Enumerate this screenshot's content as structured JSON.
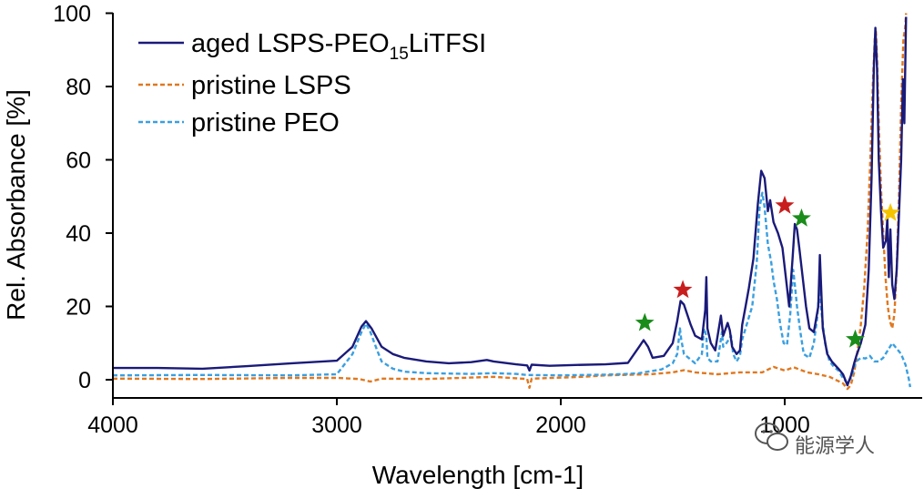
{
  "chart_data": {
    "type": "line",
    "xlabel": "Wavelength [cm-1]",
    "ylabel": "Rel. Absorbance [%]",
    "xlim": [
      4000,
      400
    ],
    "ylim": [
      -5,
      100
    ],
    "x_reversed": true,
    "x_ticks": [
      4000,
      3000,
      2000,
      1000
    ],
    "y_ticks": [
      0,
      20,
      40,
      60,
      80,
      100
    ],
    "grid": false,
    "legend_position": "top-left",
    "series": [
      {
        "name": "aged LSPS-PEO15LiTFSI",
        "legend_main": "aged LSPS-PEO",
        "legend_sub": "15",
        "legend_tail": "LiTFSI",
        "color": "#1a1a7a",
        "style": "solid",
        "points": [
          [
            4000,
            3.2
          ],
          [
            3800,
            3.2
          ],
          [
            3600,
            3.0
          ],
          [
            3400,
            3.7
          ],
          [
            3200,
            4.5
          ],
          [
            3000,
            5.2
          ],
          [
            2930,
            9.0
          ],
          [
            2890,
            14.5
          ],
          [
            2870,
            16.0
          ],
          [
            2845,
            14.0
          ],
          [
            2800,
            9.0
          ],
          [
            2750,
            7.0
          ],
          [
            2700,
            6.0
          ],
          [
            2600,
            5.0
          ],
          [
            2500,
            4.5
          ],
          [
            2400,
            4.8
          ],
          [
            2330,
            5.4
          ],
          [
            2300,
            5.0
          ],
          [
            2200,
            4.2
          ],
          [
            2150,
            3.9
          ],
          [
            2140,
            2.5
          ],
          [
            2130,
            4.1
          ],
          [
            2050,
            3.8
          ],
          [
            2000,
            3.9
          ],
          [
            1950,
            4.0
          ],
          [
            1800,
            4.2
          ],
          [
            1700,
            4.6
          ],
          [
            1650,
            9.0
          ],
          [
            1630,
            10.8
          ],
          [
            1610,
            9.0
          ],
          [
            1590,
            6.0
          ],
          [
            1540,
            6.5
          ],
          [
            1500,
            10.0
          ],
          [
            1480,
            16.0
          ],
          [
            1465,
            21.5
          ],
          [
            1450,
            20.5
          ],
          [
            1420,
            15.0
          ],
          [
            1400,
            12.0
          ],
          [
            1370,
            11.0
          ],
          [
            1355,
            19.0
          ],
          [
            1350,
            28.0
          ],
          [
            1345,
            14.0
          ],
          [
            1330,
            10.0
          ],
          [
            1310,
            8.0
          ],
          [
            1285,
            17.5
          ],
          [
            1275,
            12.0
          ],
          [
            1255,
            15.5
          ],
          [
            1245,
            13.5
          ],
          [
            1235,
            9.0
          ],
          [
            1215,
            7.0
          ],
          [
            1200,
            8.0
          ],
          [
            1190,
            15.0
          ],
          [
            1175,
            20.0
          ],
          [
            1160,
            25.0
          ],
          [
            1140,
            33.0
          ],
          [
            1120,
            48.0
          ],
          [
            1105,
            57.0
          ],
          [
            1090,
            55.0
          ],
          [
            1075,
            46.0
          ],
          [
            1065,
            49.0
          ],
          [
            1050,
            43.0
          ],
          [
            1030,
            40.0
          ],
          [
            1010,
            36.0
          ],
          [
            995,
            28.0
          ],
          [
            980,
            20.0
          ],
          [
            965,
            33.0
          ],
          [
            955,
            42.5
          ],
          [
            945,
            41.0
          ],
          [
            935,
            36.0
          ],
          [
            920,
            28.0
          ],
          [
            905,
            20.0
          ],
          [
            890,
            14.0
          ],
          [
            870,
            13.0
          ],
          [
            850,
            20.0
          ],
          [
            843,
            34.0
          ],
          [
            838,
            26.0
          ],
          [
            830,
            14.0
          ],
          [
            810,
            7.0
          ],
          [
            790,
            5.0
          ],
          [
            760,
            3.0
          ],
          [
            740,
            1.5
          ],
          [
            720,
            -1.5
          ],
          [
            705,
            1.0
          ],
          [
            690,
            4.5
          ],
          [
            680,
            6.5
          ],
          [
            660,
            10.0
          ],
          [
            640,
            15.0
          ],
          [
            625,
            30.0
          ],
          [
            612,
            55.0
          ],
          [
            602,
            85.0
          ],
          [
            595,
            96.0
          ],
          [
            588,
            85.0
          ],
          [
            580,
            60.0
          ],
          [
            570,
            46.0
          ],
          [
            560,
            36.0
          ],
          [
            548,
            38.0
          ],
          [
            542,
            44.0
          ],
          [
            535,
            28.0
          ],
          [
            528,
            41.0
          ],
          [
            520,
            26.0
          ],
          [
            510,
            22.0
          ],
          [
            500,
            30.0
          ],
          [
            490,
            45.0
          ],
          [
            480,
            60.0
          ],
          [
            472,
            82.0
          ],
          [
            466,
            70.0
          ],
          [
            462,
            84.0
          ],
          [
            458,
            99.0
          ]
        ]
      },
      {
        "name": "pristine LSPS",
        "color": "#e07820",
        "style": "dashed",
        "points": [
          [
            4000,
            0.3
          ],
          [
            3600,
            0.2
          ],
          [
            3200,
            0.5
          ],
          [
            3000,
            0.5
          ],
          [
            2900,
            0.2
          ],
          [
            2850,
            -0.5
          ],
          [
            2800,
            0.3
          ],
          [
            2600,
            0.2
          ],
          [
            2400,
            0.6
          ],
          [
            2300,
            0.8
          ],
          [
            2200,
            0.4
          ],
          [
            2150,
            0.2
          ],
          [
            2140,
            -2.2
          ],
          [
            2130,
            0.3
          ],
          [
            1900,
            0.8
          ],
          [
            1800,
            1.2
          ],
          [
            1600,
            1.5
          ],
          [
            1500,
            2.0
          ],
          [
            1450,
            2.6
          ],
          [
            1400,
            2.0
          ],
          [
            1300,
            1.5
          ],
          [
            1200,
            2.0
          ],
          [
            1100,
            2.0
          ],
          [
            1050,
            3.5
          ],
          [
            1000,
            2.5
          ],
          [
            960,
            3.4
          ],
          [
            900,
            2.0
          ],
          [
            850,
            1.5
          ],
          [
            800,
            0.8
          ],
          [
            740,
            -1.0
          ],
          [
            720,
            -2.5
          ],
          [
            705,
            -1.5
          ],
          [
            690,
            2.0
          ],
          [
            675,
            8.0
          ],
          [
            660,
            15.0
          ],
          [
            645,
            25.0
          ],
          [
            630,
            40.0
          ],
          [
            618,
            60.0
          ],
          [
            607,
            80.0
          ],
          [
            598,
            93.0
          ],
          [
            593,
            95.5
          ],
          [
            588,
            88.0
          ],
          [
            580,
            70.0
          ],
          [
            570,
            52.0
          ],
          [
            560,
            40.0
          ],
          [
            550,
            28.0
          ],
          [
            540,
            20.0
          ],
          [
            530,
            16.0
          ],
          [
            520,
            14.0
          ],
          [
            510,
            18.0
          ],
          [
            500,
            30.0
          ],
          [
            490,
            50.0
          ],
          [
            480,
            75.0
          ],
          [
            470,
            93.0
          ],
          [
            462,
            96.0
          ],
          [
            458,
            100.0
          ]
        ]
      },
      {
        "name": "pristine PEO",
        "color": "#3a9fe0",
        "style": "dashed",
        "points": [
          [
            4000,
            1.2
          ],
          [
            3600,
            1.3
          ],
          [
            3200,
            1.2
          ],
          [
            3000,
            1.5
          ],
          [
            2930,
            7.0
          ],
          [
            2890,
            13.0
          ],
          [
            2870,
            15.3
          ],
          [
            2850,
            13.0
          ],
          [
            2820,
            8.0
          ],
          [
            2800,
            5.0
          ],
          [
            2750,
            3.0
          ],
          [
            2700,
            2.2
          ],
          [
            2600,
            1.8
          ],
          [
            2400,
            1.6
          ],
          [
            2300,
            1.8
          ],
          [
            2200,
            1.6
          ],
          [
            2150,
            1.3
          ],
          [
            2000,
            1.2
          ],
          [
            1800,
            1.4
          ],
          [
            1700,
            1.6
          ],
          [
            1650,
            1.8
          ],
          [
            1600,
            2.3
          ],
          [
            1550,
            2.8
          ],
          [
            1500,
            4.5
          ],
          [
            1480,
            7.0
          ],
          [
            1468,
            14.0
          ],
          [
            1462,
            11.0
          ],
          [
            1450,
            7.0
          ],
          [
            1420,
            5.5
          ],
          [
            1400,
            4.5
          ],
          [
            1370,
            7.0
          ],
          [
            1360,
            14.0
          ],
          [
            1350,
            12.0
          ],
          [
            1345,
            6.0
          ],
          [
            1330,
            5.0
          ],
          [
            1300,
            5.0
          ],
          [
            1280,
            13.0
          ],
          [
            1275,
            9.0
          ],
          [
            1260,
            10.0
          ],
          [
            1240,
            12.0
          ],
          [
            1230,
            7.0
          ],
          [
            1215,
            5.0
          ],
          [
            1200,
            6.5
          ],
          [
            1190,
            11.0
          ],
          [
            1175,
            14.0
          ],
          [
            1160,
            17.0
          ],
          [
            1145,
            20.0
          ],
          [
            1125,
            32.0
          ],
          [
            1112,
            47.0
          ],
          [
            1100,
            51.0
          ],
          [
            1090,
            47.0
          ],
          [
            1075,
            37.0
          ],
          [
            1060,
            32.0
          ],
          [
            1050,
            27.0
          ],
          [
            1035,
            22.0
          ],
          [
            1020,
            15.0
          ],
          [
            1005,
            10.0
          ],
          [
            990,
            9.5
          ],
          [
            975,
            18.0
          ],
          [
            962,
            30.0
          ],
          [
            955,
            26.0
          ],
          [
            945,
            20.0
          ],
          [
            930,
            13.0
          ],
          [
            915,
            7.0
          ],
          [
            890,
            6.0
          ],
          [
            870,
            10.0
          ],
          [
            855,
            17.0
          ],
          [
            845,
            25.0
          ],
          [
            835,
            18.0
          ],
          [
            820,
            10.0
          ],
          [
            800,
            5.0
          ],
          [
            780,
            3.5
          ],
          [
            760,
            2.5
          ],
          [
            740,
            0.5
          ],
          [
            720,
            -1.0
          ],
          [
            700,
            1.0
          ],
          [
            690,
            3.5
          ],
          [
            680,
            5.0
          ],
          [
            660,
            6.0
          ],
          [
            640,
            5.8
          ],
          [
            620,
            6.5
          ],
          [
            600,
            5.0
          ],
          [
            580,
            5.0
          ],
          [
            560,
            6.0
          ],
          [
            540,
            8.0
          ],
          [
            520,
            10.0
          ],
          [
            500,
            8.5
          ],
          [
            480,
            7.0
          ],
          [
            460,
            4.0
          ],
          [
            445,
            0.0
          ],
          [
            440,
            -2.0
          ]
        ]
      }
    ],
    "markers": [
      {
        "x": 1625,
        "y": 15.5,
        "color": "#1a8c1a"
      },
      {
        "x": 1455,
        "y": 24.5,
        "color": "#c81e1e"
      },
      {
        "x": 1000,
        "y": 47.5,
        "color": "#c81e1e"
      },
      {
        "x": 925,
        "y": 44.0,
        "color": "#1a8c1a"
      },
      {
        "x": 685,
        "y": 11.0,
        "color": "#1a8c1a"
      },
      {
        "x": 528,
        "y": 45.5,
        "color": "#f5c400"
      }
    ]
  },
  "watermark": {
    "icon": "wechat-icon",
    "text": "能源学人"
  }
}
